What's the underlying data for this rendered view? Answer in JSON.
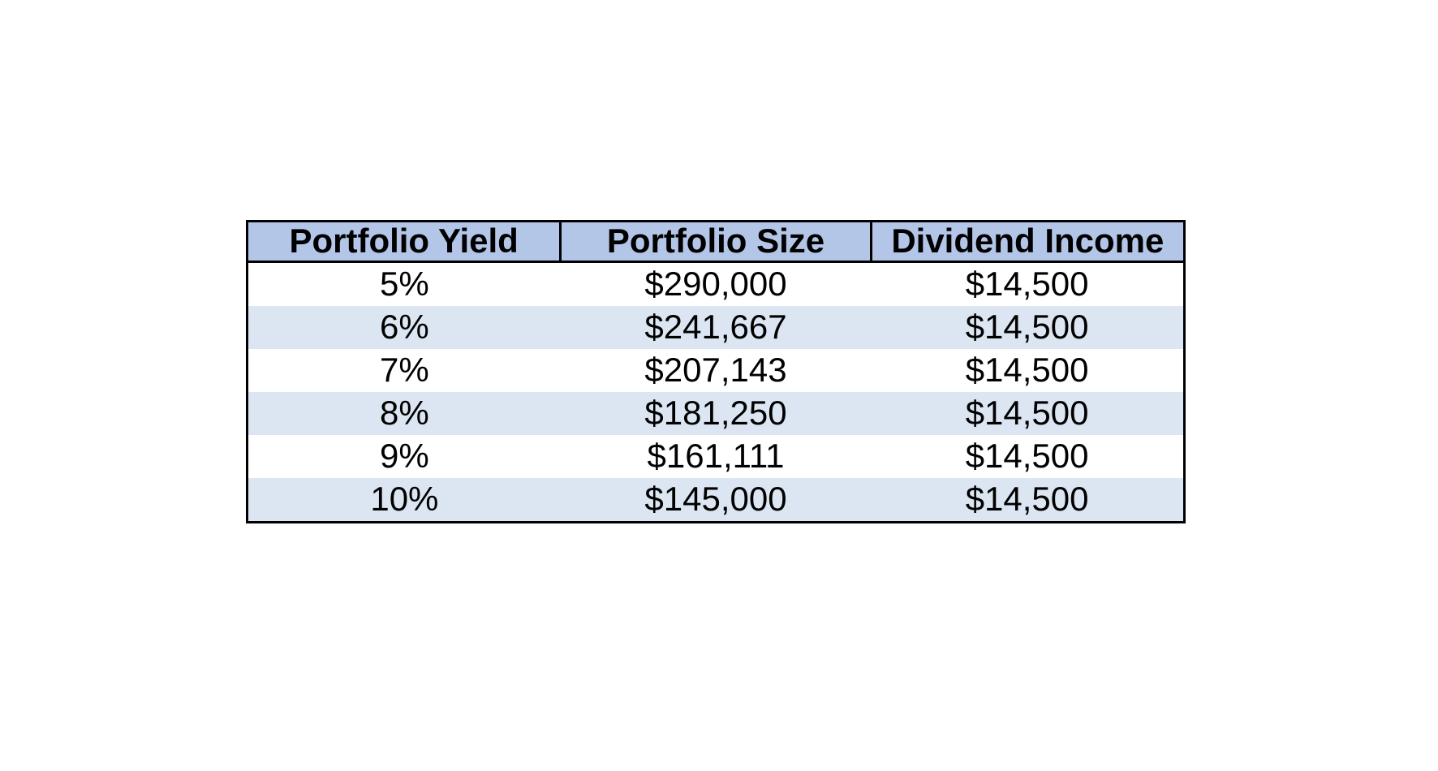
{
  "page": {
    "background": "#ffffff"
  },
  "colors": {
    "header_fill": "#b4c6e7",
    "stripe_fill": "#dce6f2",
    "row_fill": "#ffffff",
    "border": "#000000",
    "text": "#000000"
  },
  "chart_data": {
    "type": "table",
    "columns": [
      "Portfolio Yield",
      "Portfolio Size",
      "Dividend Income"
    ],
    "rows": [
      [
        "5%",
        "$290,000",
        "$14,500"
      ],
      [
        "6%",
        "$241,667",
        "$14,500"
      ],
      [
        "7%",
        "$207,143",
        "$14,500"
      ],
      [
        "8%",
        "$181,250",
        "$14,500"
      ],
      [
        "9%",
        "$161,111",
        "$14,500"
      ],
      [
        "10%",
        "$145,000",
        "$14,500"
      ]
    ],
    "layout": {
      "header_row": true,
      "zebra_striping": true,
      "striped_rows": "even",
      "text_align": "center",
      "grid": "outer-border-and-header-only",
      "legend": "none"
    }
  }
}
